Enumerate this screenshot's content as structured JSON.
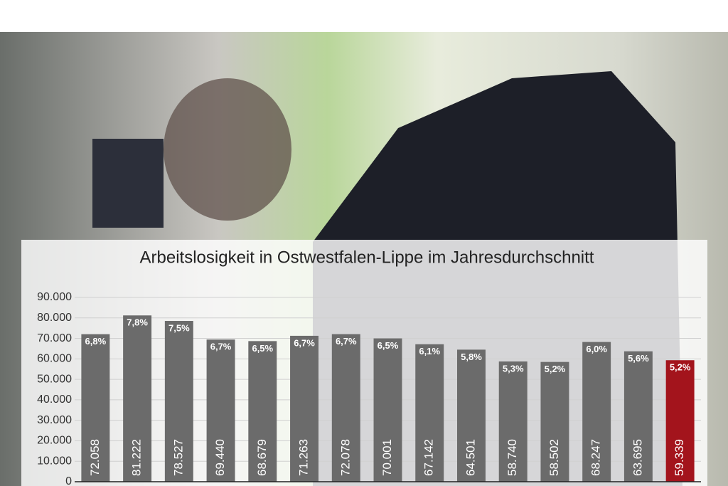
{
  "chart_data": {
    "type": "bar",
    "title": "Arbeitslosigkeit in Ostwestfalen-Lippe im Jahresdurchschnitt",
    "categories": [
      null,
      null,
      null,
      null,
      null,
      null,
      null,
      null,
      null,
      null,
      null,
      null,
      null,
      null,
      null
    ],
    "values": [
      72058,
      81222,
      78527,
      69440,
      68679,
      71263,
      72078,
      70001,
      67142,
      64501,
      58740,
      58502,
      68247,
      63695,
      59339
    ],
    "value_labels": [
      "72.058",
      "81.222",
      "78.527",
      "69.440",
      "68.679",
      "71.263",
      "72.078",
      "70.001",
      "67.142",
      "64.501",
      "58.740",
      "58.502",
      "68.247",
      "63.695",
      "59.339"
    ],
    "rate_labels": [
      "6,8%",
      "7,8%",
      "7,5%",
      "6,7%",
      "6,5%",
      "6,7%",
      "6,7%",
      "6,5%",
      "6,1%",
      "5,8%",
      "5,3%",
      "5,2%",
      "6,0%",
      "5,6%",
      "5,2%"
    ],
    "colors": [
      "#6b6b6b",
      "#6b6b6b",
      "#6b6b6b",
      "#6b6b6b",
      "#6b6b6b",
      "#6b6b6b",
      "#6b6b6b",
      "#6b6b6b",
      "#6b6b6b",
      "#6b6b6b",
      "#6b6b6b",
      "#6b6b6b",
      "#6b6b6b",
      "#6b6b6b",
      "#a3141c"
    ],
    "ylim": [
      0,
      90000
    ],
    "yticks": [
      0,
      {
        "value": 10000,
        "label": "10.000"
      },
      {
        "value": 20000,
        "label": "20.000"
      },
      {
        "value": 30000,
        "label": "30.000"
      },
      {
        "value": 40000,
        "label": "40.000"
      },
      {
        "value": 50000,
        "label": "50.000"
      },
      {
        "value": 60000,
        "label": "60.000"
      },
      {
        "value": 70000,
        "label": "70.000"
      },
      {
        "value": 80000,
        "label": "80.000"
      },
      {
        "value": 90000,
        "label": "90.000"
      }
    ],
    "grid": true
  }
}
